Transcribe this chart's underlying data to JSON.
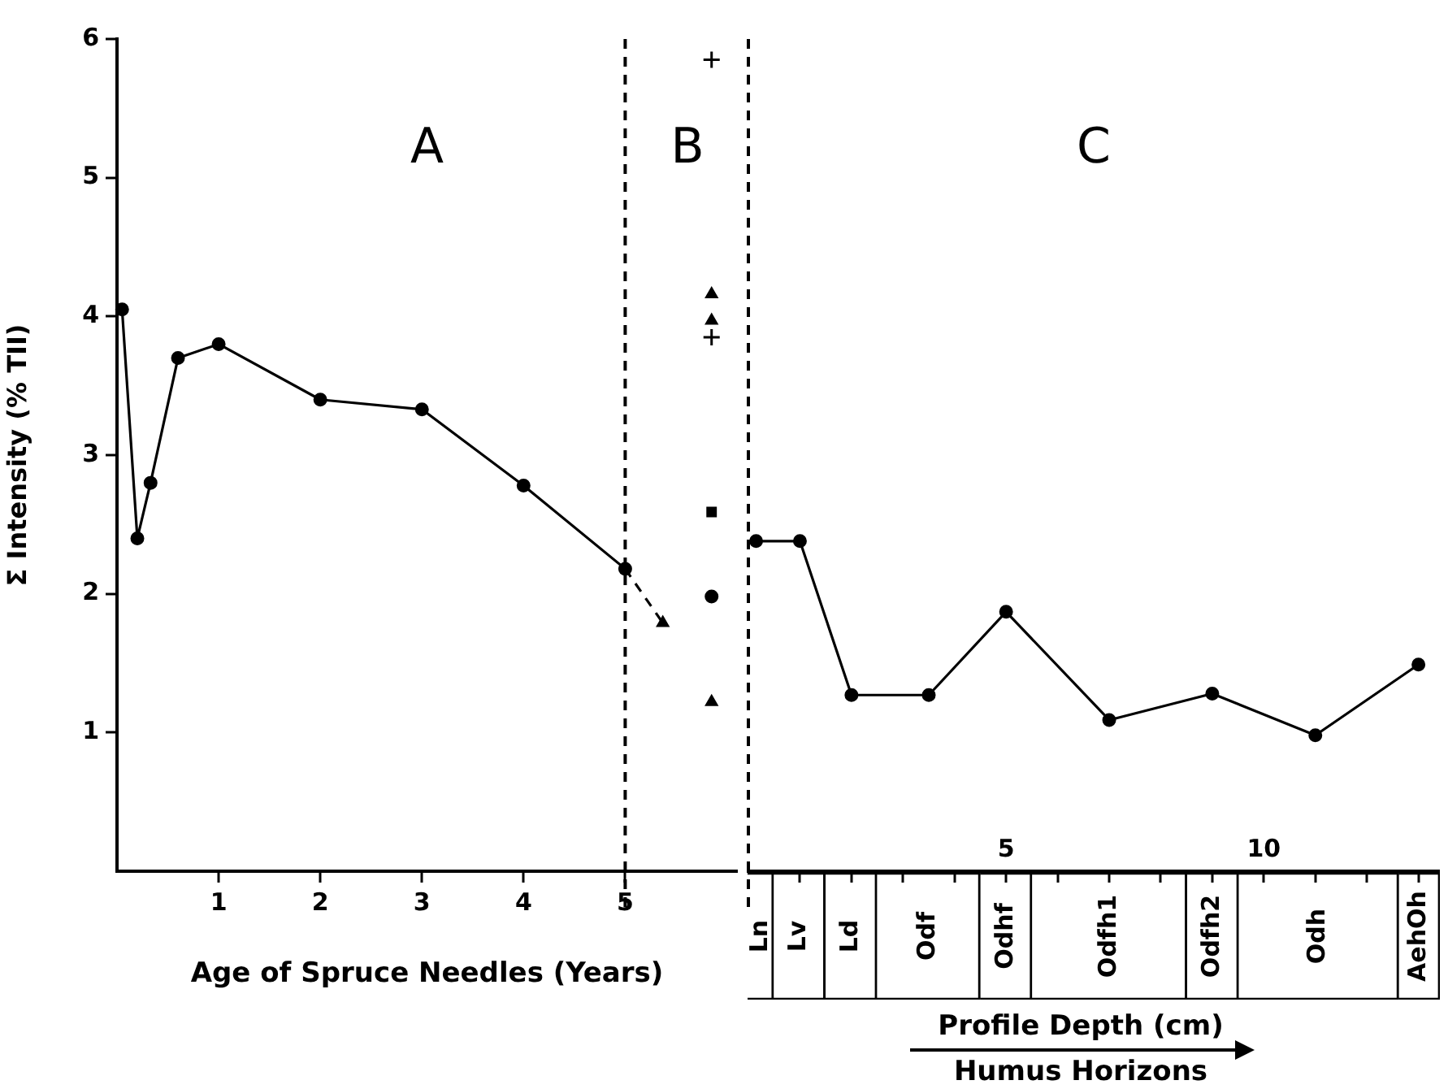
{
  "chart_data": [
    {
      "type": "line",
      "title": "A",
      "annotations": [
        "B"
      ],
      "xlabel": "Age of Spruce Needles (Years)",
      "ylabel": "Σ Intensity (% TII)",
      "xlim": [
        0,
        6.1
      ],
      "xticks": [
        1,
        2,
        3,
        4,
        5
      ],
      "ylim": [
        0,
        6
      ],
      "yticks": [
        1,
        2,
        3,
        4,
        5,
        6
      ],
      "grid": false,
      "legend": false,
      "ref_lines": [
        {
          "axis": "x",
          "value": 5,
          "line_style": "dashed",
          "color": "#000000"
        }
      ],
      "series": [
        {
          "color": "#000000",
          "marker": "circle",
          "x": [
            0.05,
            0.2,
            0.33,
            0.6,
            1,
            2,
            3,
            4,
            5
          ],
          "values": [
            4.05,
            2.4,
            2.8,
            3.7,
            3.8,
            3.4,
            3.33,
            2.78,
            2.18
          ]
        },
        {
          "type": "line",
          "color": "#000000",
          "marker": "none",
          "line_style": "dashed",
          "x": [
            5,
            5.37
          ],
          "values": [
            2.18,
            1.79
          ]
        },
        {
          "type": "scatter",
          "color": "#000000",
          "marker": "triangle",
          "x": [
            5.37
          ],
          "values": [
            1.79
          ]
        },
        {
          "type": "scatter",
          "color": "#000000",
          "marker": "cross",
          "x": [
            5.85
          ],
          "values": [
            5.85
          ]
        },
        {
          "type": "scatter",
          "color": "#000000",
          "marker": "triangle",
          "x": [
            5.85
          ],
          "values": [
            4.16
          ]
        },
        {
          "type": "scatter",
          "color": "#000000",
          "marker": "triangle",
          "x": [
            5.85
          ],
          "values": [
            3.97
          ]
        },
        {
          "type": "scatter",
          "color": "#000000",
          "marker": "cross",
          "x": [
            5.85
          ],
          "values": [
            3.85
          ]
        },
        {
          "type": "scatter",
          "color": "#000000",
          "marker": "square",
          "x": [
            5.85
          ],
          "values": [
            2.59
          ]
        },
        {
          "type": "scatter",
          "color": "#000000",
          "marker": "circle",
          "x": [
            5.85
          ],
          "values": [
            1.98
          ]
        },
        {
          "type": "scatter",
          "color": "#000000",
          "marker": "triangle",
          "x": [
            5.85
          ],
          "values": [
            1.22
          ]
        }
      ]
    },
    {
      "type": "line",
      "title": "C",
      "xlim": [
        0,
        13.4
      ],
      "xticks": [
        {
          "value": 1,
          "label": null
        },
        {
          "value": 2,
          "label": null
        },
        {
          "value": 3,
          "label": null
        },
        {
          "value": 4,
          "label": null
        },
        5,
        {
          "value": 6,
          "label": null
        },
        {
          "value": 7,
          "label": null
        },
        {
          "value": 8,
          "label": null
        },
        {
          "value": 9,
          "label": null
        },
        10,
        {
          "value": 11,
          "label": null
        },
        {
          "value": 12,
          "label": null
        },
        {
          "value": 13,
          "label": null
        }
      ],
      "ylim": [
        0,
        6
      ],
      "tick_labels": "x",
      "grid": false,
      "legend": false,
      "ref_lines": [
        {
          "axis": "x",
          "value": 0,
          "line_style": "dashed",
          "color": "#000000"
        }
      ],
      "series": [
        {
          "color": "#000000",
          "marker": "circle",
          "x": [
            0.15,
            1,
            2,
            3.5,
            5,
            7,
            9,
            11,
            13
          ],
          "values": [
            2.38,
            2.38,
            1.27,
            1.27,
            1.87,
            1.09,
            1.28,
            0.98,
            1.49
          ]
        }
      ]
    },
    {
      "type": "bar",
      "orientation": "horizontal",
      "stacked": true,
      "xlabel": "Profile Depth (cm)",
      "annotations": [
        "Humus Horizons"
      ],
      "categories": [
        null
      ],
      "xlim": [
        0,
        13.4
      ],
      "tick_labels": false,
      "legend": false,
      "series": [
        {
          "name": "Ln",
          "color": "#ffffff",
          "values": [
            0.5
          ]
        },
        {
          "name": "Lv",
          "color": "#ffffff",
          "values": [
            1
          ]
        },
        {
          "name": "Ld",
          "color": "#ffffff",
          "values": [
            1
          ]
        },
        {
          "name": "Odf",
          "color": "#ffffff",
          "values": [
            2
          ]
        },
        {
          "name": "Odhf",
          "color": "#ffffff",
          "values": [
            1
          ]
        },
        {
          "name": "Odfh1",
          "color": "#ffffff",
          "values": [
            3
          ]
        },
        {
          "name": "Odfh2",
          "color": "#ffffff",
          "values": [
            1
          ]
        },
        {
          "name": "Odh",
          "color": "#ffffff",
          "values": [
            3.1
          ]
        },
        {
          "name": "AehOh",
          "color": "#ffffff",
          "values": [
            0.8
          ]
        }
      ]
    }
  ]
}
